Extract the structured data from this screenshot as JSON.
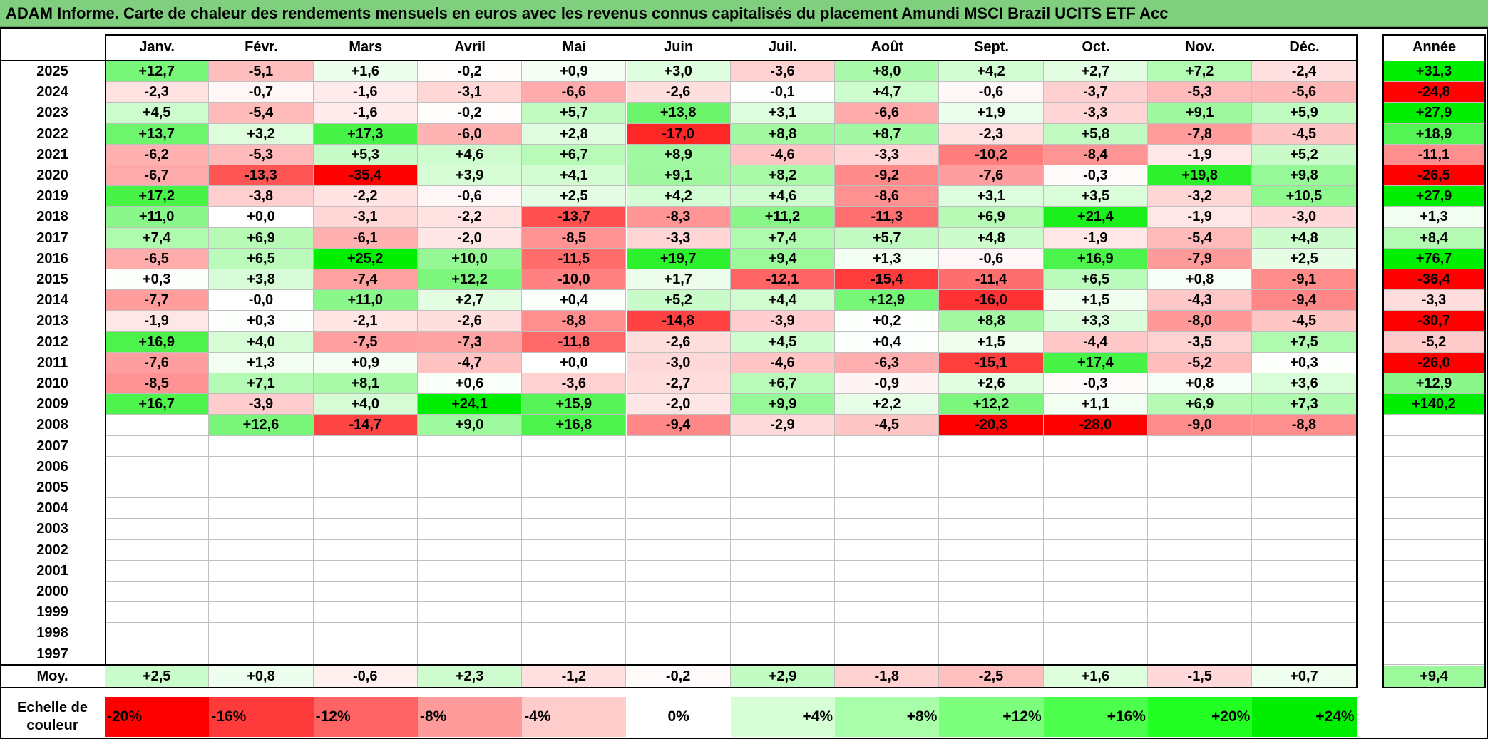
{
  "title": "ADAM Informe. Carte de chaleur des rendements mensuels en euros avec les revenus connus capitalisés du placement Amundi MSCI Brazil UCITS ETF Acc",
  "chart_data": {
    "type": "heatmap",
    "title": "ADAM Informe. Carte de chaleur des rendements mensuels en euros avec les revenus connus capitalisés du placement Amundi MSCI Brazil UCITS ETF Acc",
    "months": [
      "Janv.",
      "Févr.",
      "Mars",
      "Avril",
      "Mai",
      "Juin",
      "Juil.",
      "Août",
      "Sept.",
      "Oct.",
      "Nov.",
      "Déc."
    ],
    "year_header": "Année",
    "rows": [
      {
        "year": "2025",
        "values": [
          "+12,7",
          "-5,1",
          "+1,6",
          "-0,2",
          "+0,9",
          "+3,0",
          "-3,6",
          "+8,0",
          "+4,2",
          "+2,7",
          "+7,2",
          "-2,4"
        ],
        "annual": "+31,3"
      },
      {
        "year": "2024",
        "values": [
          "-2,3",
          "-0,7",
          "-1,6",
          "-3,1",
          "-6,6",
          "-2,6",
          "-0,1",
          "+4,7",
          "-0,6",
          "-3,7",
          "-5,3",
          "-5,6"
        ],
        "annual": "-24,8"
      },
      {
        "year": "2023",
        "values": [
          "+4,5",
          "-5,4",
          "-1,6",
          "-0,2",
          "+5,7",
          "+13,8",
          "+3,1",
          "-6,6",
          "+1,9",
          "-3,3",
          "+9,1",
          "+5,9"
        ],
        "annual": "+27,9"
      },
      {
        "year": "2022",
        "values": [
          "+13,7",
          "+3,2",
          "+17,3",
          "-6,0",
          "+2,8",
          "-17,0",
          "+8,8",
          "+8,7",
          "-2,3",
          "+5,8",
          "-7,8",
          "-4,5"
        ],
        "annual": "+18,9"
      },
      {
        "year": "2021",
        "values": [
          "-6,2",
          "-5,3",
          "+5,3",
          "+4,6",
          "+6,7",
          "+8,9",
          "-4,6",
          "-3,3",
          "-10,2",
          "-8,4",
          "-1,9",
          "+5,2"
        ],
        "annual": "-11,1"
      },
      {
        "year": "2020",
        "values": [
          "-6,7",
          "-13,3",
          "-35,4",
          "+3,9",
          "+4,1",
          "+9,1",
          "+8,2",
          "-9,2",
          "-7,6",
          "-0,3",
          "+19,8",
          "+9,8"
        ],
        "annual": "-26,5"
      },
      {
        "year": "2019",
        "values": [
          "+17,2",
          "-3,8",
          "-2,2",
          "-0,6",
          "+2,5",
          "+4,2",
          "+4,6",
          "-8,6",
          "+3,1",
          "+3,5",
          "-3,2",
          "+10,5"
        ],
        "annual": "+27,9"
      },
      {
        "year": "2018",
        "values": [
          "+11,0",
          "+0,0",
          "-3,1",
          "-2,2",
          "-13,7",
          "-8,3",
          "+11,2",
          "-11,3",
          "+6,9",
          "+21,4",
          "-1,9",
          "-3,0"
        ],
        "annual": "+1,3"
      },
      {
        "year": "2017",
        "values": [
          "+7,4",
          "+6,9",
          "-6,1",
          "-2,0",
          "-8,5",
          "-3,3",
          "+7,4",
          "+5,7",
          "+4,8",
          "-1,9",
          "-5,4",
          "+4,8"
        ],
        "annual": "+8,4"
      },
      {
        "year": "2016",
        "values": [
          "-6,5",
          "+6,5",
          "+25,2",
          "+10,0",
          "-11,5",
          "+19,7",
          "+9,4",
          "+1,3",
          "-0,6",
          "+16,9",
          "-7,9",
          "+2,5"
        ],
        "annual": "+76,7"
      },
      {
        "year": "2015",
        "values": [
          "+0,3",
          "+3,8",
          "-7,4",
          "+12,2",
          "-10,0",
          "+1,7",
          "-12,1",
          "-15,4",
          "-11,4",
          "+6,5",
          "+0,8",
          "-9,1"
        ],
        "annual": "-36,4"
      },
      {
        "year": "2014",
        "values": [
          "-7,7",
          "-0,0",
          "+11,0",
          "+2,7",
          "+0,4",
          "+5,2",
          "+4,4",
          "+12,9",
          "-16,0",
          "+1,5",
          "-4,3",
          "-9,4"
        ],
        "annual": "-3,3"
      },
      {
        "year": "2013",
        "values": [
          "-1,9",
          "+0,3",
          "-2,1",
          "-2,6",
          "-8,8",
          "-14,8",
          "-3,9",
          "+0,2",
          "+8,8",
          "+3,3",
          "-8,0",
          "-4,5"
        ],
        "annual": "-30,7"
      },
      {
        "year": "2012",
        "values": [
          "+16,9",
          "+4,0",
          "-7,5",
          "-7,3",
          "-11,8",
          "-2,6",
          "+4,5",
          "+0,4",
          "+1,5",
          "-4,4",
          "-3,5",
          "+7,5"
        ],
        "annual": "-5,2"
      },
      {
        "year": "2011",
        "values": [
          "-7,6",
          "+1,3",
          "+0,9",
          "-4,7",
          "+0,0",
          "-3,0",
          "-4,6",
          "-6,3",
          "-15,1",
          "+17,4",
          "-5,2",
          "+0,3"
        ],
        "annual": "-26,0"
      },
      {
        "year": "2010",
        "values": [
          "-8,5",
          "+7,1",
          "+8,1",
          "+0,6",
          "-3,6",
          "-2,7",
          "+6,7",
          "-0,9",
          "+2,6",
          "-0,3",
          "+0,8",
          "+3,6"
        ],
        "annual": "+12,9"
      },
      {
        "year": "2009",
        "values": [
          "+16,7",
          "-3,9",
          "+4,0",
          "+24,1",
          "+15,9",
          "-2,0",
          "+9,9",
          "+2,2",
          "+12,2",
          "+1,1",
          "+6,9",
          "+7,3"
        ],
        "annual": "+140,2"
      },
      {
        "year": "2008",
        "values": [
          "",
          "+12,6",
          "-14,7",
          "+9,0",
          "+16,8",
          "-9,4",
          "-2,9",
          "-4,5",
          "-20,3",
          "-28,0",
          "-9,0",
          "-8,8"
        ],
        "annual": ""
      },
      {
        "year": "2007",
        "values": [
          "",
          "",
          "",
          "",
          "",
          "",
          "",
          "",
          "",
          "",
          "",
          ""
        ],
        "annual": ""
      },
      {
        "year": "2006",
        "values": [
          "",
          "",
          "",
          "",
          "",
          "",
          "",
          "",
          "",
          "",
          "",
          ""
        ],
        "annual": ""
      },
      {
        "year": "2005",
        "values": [
          "",
          "",
          "",
          "",
          "",
          "",
          "",
          "",
          "",
          "",
          "",
          ""
        ],
        "annual": ""
      },
      {
        "year": "2004",
        "values": [
          "",
          "",
          "",
          "",
          "",
          "",
          "",
          "",
          "",
          "",
          "",
          ""
        ],
        "annual": ""
      },
      {
        "year": "2003",
        "values": [
          "",
          "",
          "",
          "",
          "",
          "",
          "",
          "",
          "",
          "",
          "",
          ""
        ],
        "annual": ""
      },
      {
        "year": "2002",
        "values": [
          "",
          "",
          "",
          "",
          "",
          "",
          "",
          "",
          "",
          "",
          "",
          ""
        ],
        "annual": ""
      },
      {
        "year": "2001",
        "values": [
          "",
          "",
          "",
          "",
          "",
          "",
          "",
          "",
          "",
          "",
          "",
          ""
        ],
        "annual": ""
      },
      {
        "year": "2000",
        "values": [
          "",
          "",
          "",
          "",
          "",
          "",
          "",
          "",
          "",
          "",
          "",
          ""
        ],
        "annual": ""
      },
      {
        "year": "1999",
        "values": [
          "",
          "",
          "",
          "",
          "",
          "",
          "",
          "",
          "",
          "",
          "",
          ""
        ],
        "annual": ""
      },
      {
        "year": "1998",
        "values": [
          "",
          "",
          "",
          "",
          "",
          "",
          "",
          "",
          "",
          "",
          "",
          ""
        ],
        "annual": ""
      },
      {
        "year": "1997",
        "values": [
          "",
          "",
          "",
          "",
          "",
          "",
          "",
          "",
          "",
          "",
          "",
          ""
        ],
        "annual": ""
      }
    ],
    "average": {
      "label": "Moy.",
      "values": [
        "+2,5",
        "+0,8",
        "-0,6",
        "+2,3",
        "-1,2",
        "-0,2",
        "+2,9",
        "-1,8",
        "-2,5",
        "+1,6",
        "-1,5",
        "+0,7"
      ],
      "annual": "+9,4"
    },
    "color_scale": {
      "label": "Echelle de couleur",
      "steps": [
        {
          "text": "-20%",
          "value": -20,
          "color": "#ff0000"
        },
        {
          "text": "-16%",
          "value": -16,
          "color": "#ff3a3a"
        },
        {
          "text": "-12%",
          "value": -12,
          "color": "#ff6464"
        },
        {
          "text": "-8%",
          "value": -8,
          "color": "#ff9a9a"
        },
        {
          "text": "-4%",
          "value": -4,
          "color": "#ffcccc"
        },
        {
          "text": "0%",
          "value": 0,
          "color": "#ffffff"
        },
        {
          "text": "+4%",
          "value": 4,
          "color": "#d6ffd6"
        },
        {
          "text": "+8%",
          "value": 8,
          "color": "#a9ffa9"
        },
        {
          "text": "+12%",
          "value": 12,
          "color": "#7cff7c"
        },
        {
          "text": "+16%",
          "value": 16,
          "color": "#4dff4d"
        },
        {
          "text": "+20%",
          "value": 20,
          "color": "#22ff22"
        },
        {
          "text": "+24%",
          "value": 24,
          "color": "#00ee00"
        }
      ]
    }
  }
}
